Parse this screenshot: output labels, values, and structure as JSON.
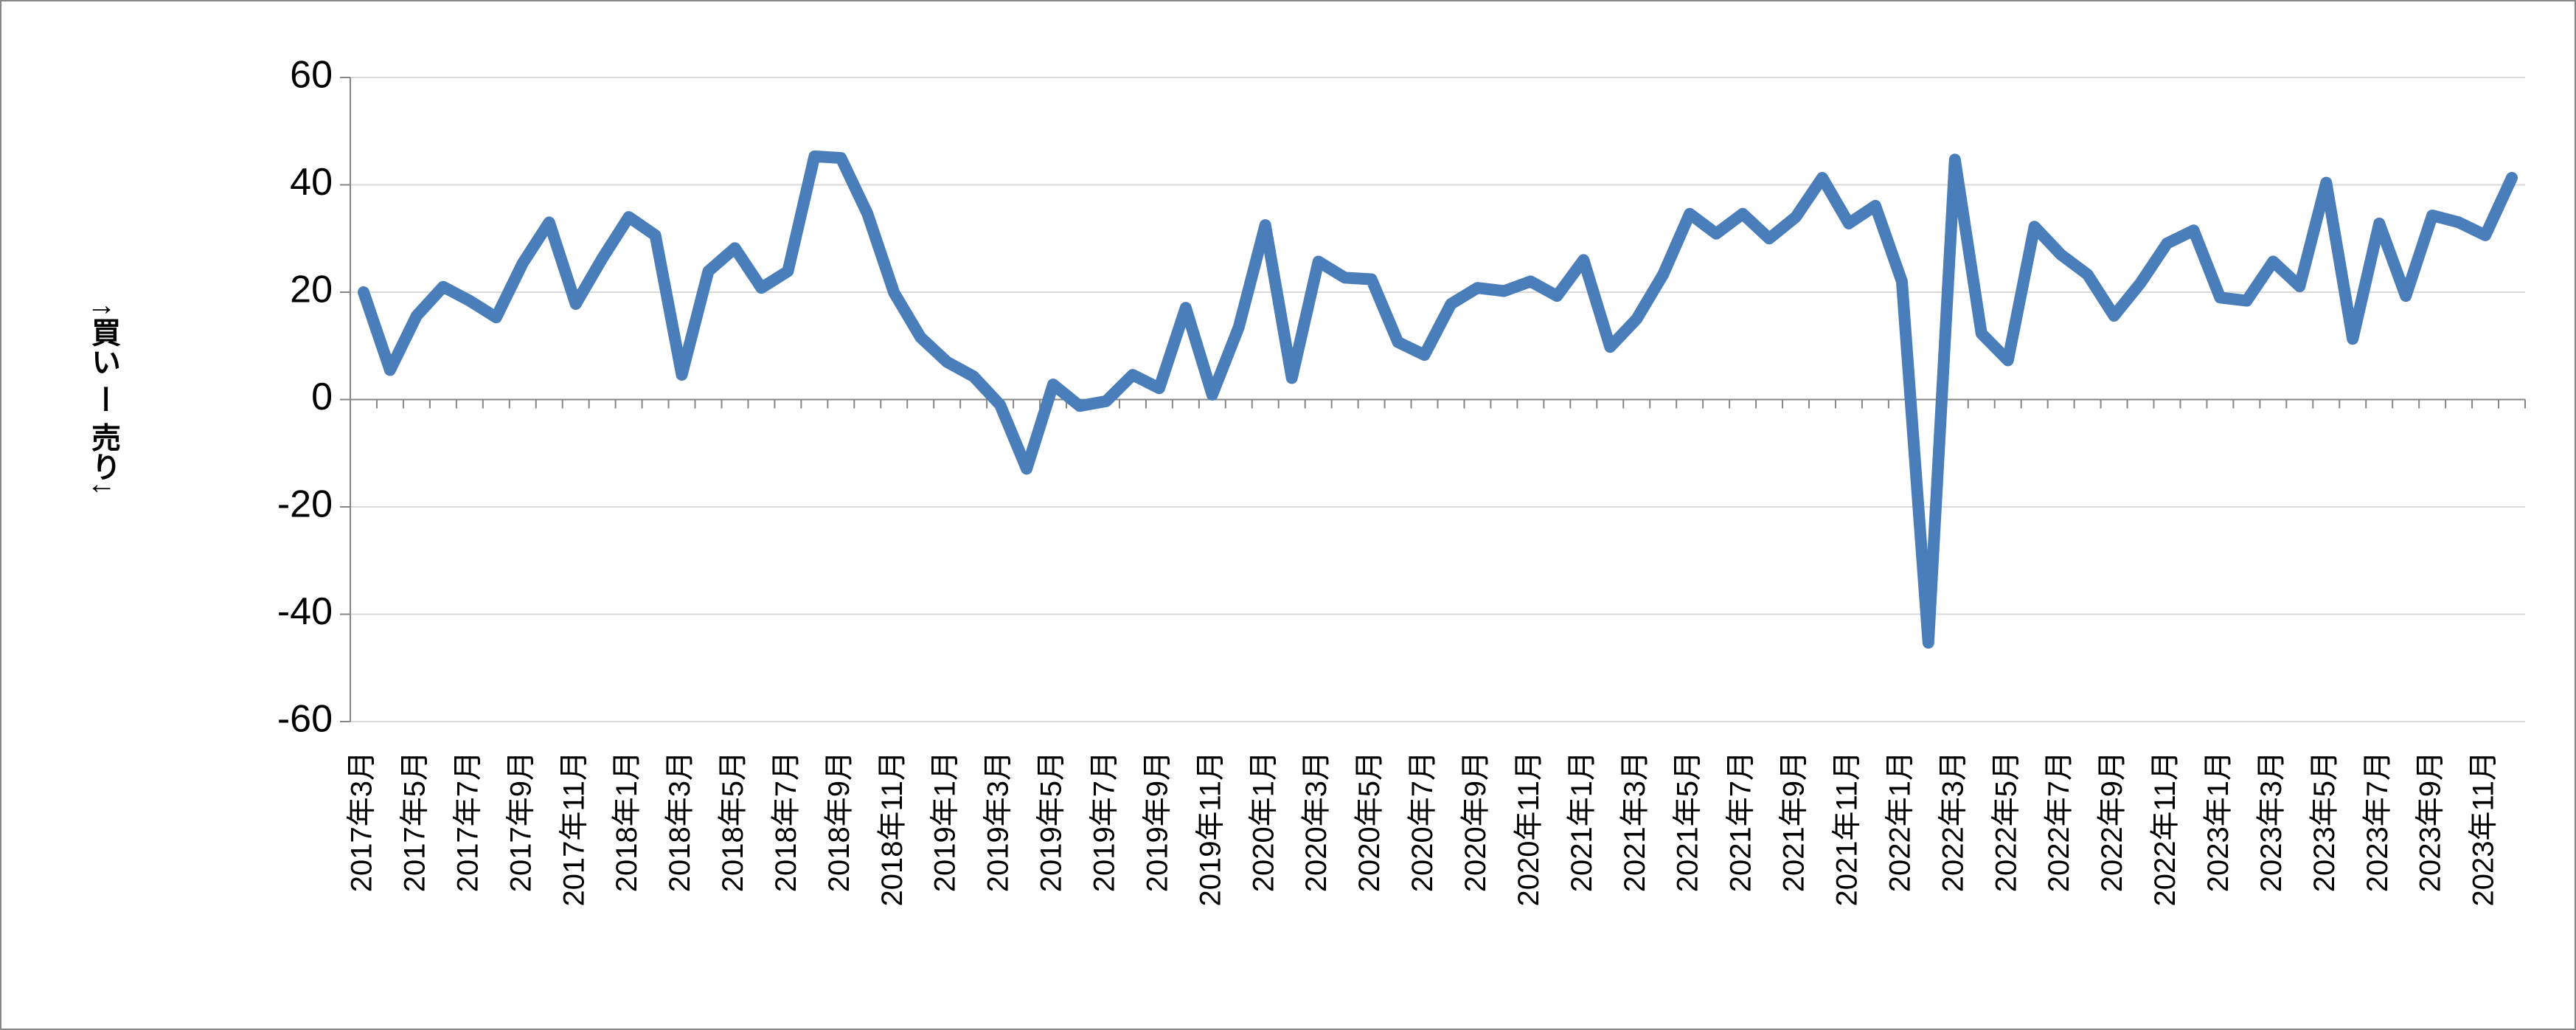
{
  "chart_data": {
    "type": "line",
    "y_label": "↑買い ー 売り↓",
    "categories": [
      "2017年3月",
      null,
      "2017年5月",
      null,
      "2017年7月",
      null,
      "2017年9月",
      null,
      "2017年11月",
      null,
      "2018年1月",
      null,
      "2018年3月",
      null,
      "2018年5月",
      null,
      "2018年7月",
      null,
      "2018年9月",
      null,
      "2018年11月",
      null,
      "2019年1月",
      null,
      "2019年3月",
      null,
      "2019年5月",
      null,
      "2019年7月",
      null,
      "2019年9月",
      null,
      "2019年11月",
      null,
      "2020年1月",
      null,
      "2020年3月",
      null,
      "2020年5月",
      null,
      "2020年7月",
      null,
      "2020年9月",
      null,
      "2020年11月",
      null,
      "2021年1月",
      null,
      "2021年3月",
      null,
      "2021年5月",
      null,
      "2021年7月",
      null,
      "2021年9月",
      null,
      "2021年11月",
      null,
      "2022年1月",
      null,
      "2022年3月",
      null,
      "2022年5月",
      null,
      "2022年7月",
      null,
      "2022年9月",
      null,
      "2022年11月",
      null,
      "2023年1月",
      null,
      "2023年3月",
      null,
      "2023年5月",
      null,
      "2023年7月",
      null,
      "2023年9月",
      null,
      "2023年11月",
      null
    ],
    "series": [
      {
        "color": "#4a7ebb",
        "values": [
          20,
          5.5,
          15.6,
          21,
          18.4,
          15.3,
          25.4,
          33,
          17.8,
          26.3,
          34,
          30.6,
          4.6,
          23.9,
          28.2,
          20.8,
          23.9,
          45.3,
          45,
          34.6,
          19.9,
          11.6,
          7,
          4.3,
          -1,
          -12.9,
          2.8,
          -1.2,
          -0.3,
          4.6,
          2.1,
          17.1,
          0.9,
          13.5,
          32.5,
          4,
          25.7,
          22.7,
          22.4,
          10.7,
          8.3,
          17.8,
          20.8,
          20.2,
          22,
          19.3,
          26,
          9.8,
          15,
          23.3,
          34.6,
          30.9,
          34.6,
          30,
          34,
          41.3,
          32.8,
          36.1,
          22,
          -45.3,
          44.7,
          12.3,
          7.3,
          32.2,
          27,
          23.3,
          15.6,
          21.7,
          29.1,
          31.5,
          19,
          18.4,
          25.7,
          21.1,
          40.4,
          11.3,
          32.8,
          19.3,
          34.3,
          33,
          30.6,
          41.3
        ]
      }
    ],
    "ylim": [
      -60,
      60
    ],
    "yticks": [
      -60,
      -40,
      -20,
      0,
      20,
      40,
      60
    ],
    "grid": true
  }
}
